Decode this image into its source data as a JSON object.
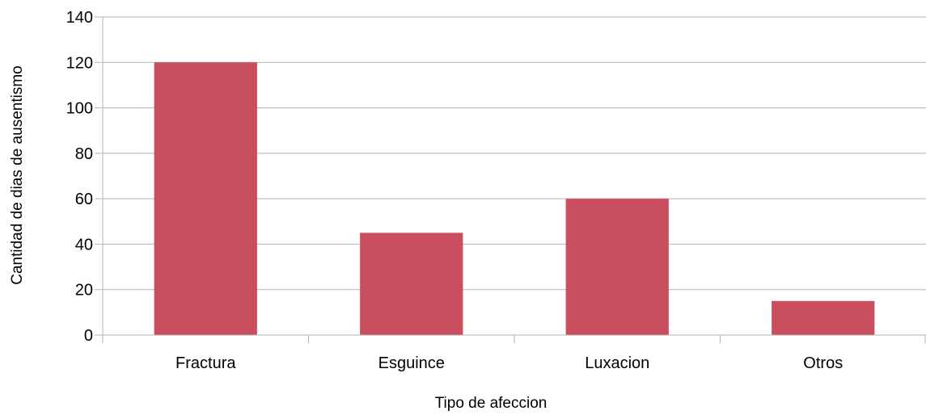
{
  "chart_data": {
    "type": "bar",
    "title": "",
    "xlabel": "Tipo de afeccion",
    "ylabel": "Cantidad de dias de ausentismo",
    "categories": [
      "Fractura",
      "Esguince",
      "Luxacion",
      "Otros"
    ],
    "values": [
      120,
      45,
      60,
      15
    ],
    "ylim": [
      0,
      140
    ],
    "yticks": [
      0,
      20,
      40,
      60,
      80,
      100,
      120,
      140
    ],
    "grid": true,
    "legend": "none",
    "bar_color": "#c94f5e"
  }
}
